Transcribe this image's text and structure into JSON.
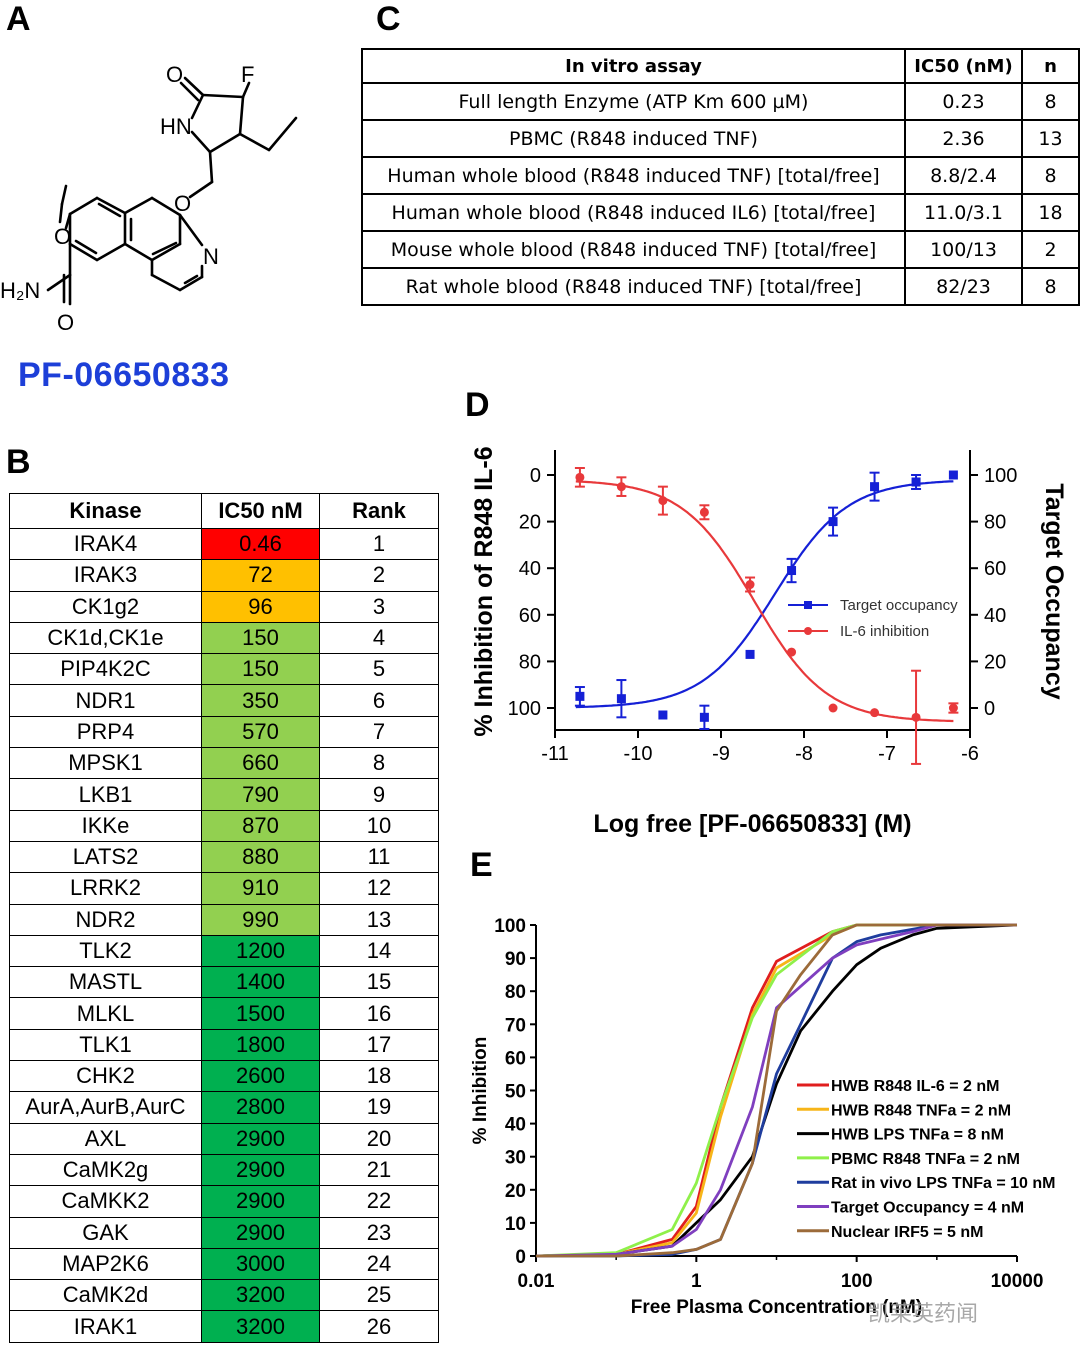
{
  "panels": {
    "a": "A",
    "b": "B",
    "c": "C",
    "d": "D",
    "e": "E"
  },
  "compound": {
    "name": "PF-06650833",
    "atom_labels": {
      "o1": "O",
      "f": "F",
      "hn": "HN",
      "o2": "O",
      "n": "N",
      "o3": "O",
      "h2n": "H₂N",
      "o4": "O"
    }
  },
  "assay_table": {
    "headers": [
      "In vitro assay",
      "IC50 (nM)",
      "n"
    ],
    "rows": [
      [
        "Full length Enzyme (ATP Km 600 µM)",
        "0.23",
        "8"
      ],
      [
        "PBMC (R848 induced TNF)",
        "2.36",
        "13"
      ],
      [
        "Human whole blood (R848 induced TNF) [total/free]",
        "8.8/2.4",
        "8"
      ],
      [
        "Human whole blood (R848 induced IL6) [total/free]",
        "11.0/3.1",
        "18"
      ],
      [
        "Mouse whole blood (R848 induced TNF) [total/free]",
        "100/13",
        "2"
      ],
      [
        "Rat whole blood (R848 induced TNF) [total/free]",
        "82/23",
        "8"
      ]
    ]
  },
  "kinase_table": {
    "headers": [
      "Kinase",
      "IC50 nM",
      "Rank"
    ],
    "rows": [
      [
        "IRAK4",
        "0.46",
        "1"
      ],
      [
        "IRAK3",
        "72",
        "2"
      ],
      [
        "CK1g2",
        "96",
        "3"
      ],
      [
        "CK1d,CK1e",
        "150",
        "4"
      ],
      [
        "PIP4K2C",
        "150",
        "5"
      ],
      [
        "NDR1",
        "350",
        "6"
      ],
      [
        "PRP4",
        "570",
        "7"
      ],
      [
        "MPSK1",
        "660",
        "8"
      ],
      [
        "LKB1",
        "790",
        "9"
      ],
      [
        "IKKe",
        "870",
        "10"
      ],
      [
        "LATS2",
        "880",
        "11"
      ],
      [
        "LRRK2",
        "910",
        "12"
      ],
      [
        "NDR2",
        "990",
        "13"
      ],
      [
        "TLK2",
        "1200",
        "14"
      ],
      [
        "MASTL",
        "1400",
        "15"
      ],
      [
        "MLKL",
        "1500",
        "16"
      ],
      [
        "TLK1",
        "1800",
        "17"
      ],
      [
        "CHK2",
        "2600",
        "18"
      ],
      [
        "AurA,AurB,AurC",
        "2800",
        "19"
      ],
      [
        "AXL",
        "2900",
        "20"
      ],
      [
        "CaMK2g",
        "2900",
        "21"
      ],
      [
        "CaMKK2",
        "2900",
        "22"
      ],
      [
        "GAK",
        "2900",
        "23"
      ],
      [
        "MAP2K6",
        "3000",
        "24"
      ],
      [
        "CaMK2d",
        "3200",
        "25"
      ],
      [
        "IRAK1",
        "3200",
        "26"
      ]
    ],
    "colors": {
      "red": "#ff0000",
      "orange": "#ffc000",
      "lightgreen": "#92d050",
      "green": "#00b050"
    }
  },
  "chart_data": [
    {
      "type": "scatter",
      "panel": "D",
      "xlabel": "Log free [PF-06650833] (M)",
      "ylabel": "% Inhibition of R848 IL-6",
      "y2label": "Target Occupancy",
      "xlim": [
        -11,
        -6
      ],
      "ylim": [
        100,
        0
      ],
      "y2lim": [
        0,
        100
      ],
      "xticks": [
        "-11",
        "-10",
        "-9",
        "-8",
        "-7",
        "-6"
      ],
      "yticks": [
        "0",
        "20",
        "40",
        "60",
        "80",
        "100"
      ],
      "y2ticks": [
        "100",
        "80",
        "60",
        "40",
        "20",
        "0"
      ],
      "legend_position": "center-right",
      "series": [
        {
          "name": "Target occupancy",
          "axis": "right",
          "color": "#1520d6",
          "marker": "square",
          "x": [
            -10.7,
            -10.2,
            -9.7,
            -9.2,
            -8.65,
            -8.15,
            -7.65,
            -7.15,
            -6.65,
            -6.2
          ],
          "y": [
            5,
            4,
            -3,
            -4,
            23,
            59,
            80,
            95,
            97,
            100
          ],
          "err": [
            4,
            8,
            0,
            5,
            0,
            5,
            6,
            6,
            3,
            0
          ],
          "fit": {
            "bottom": 0,
            "top": 98,
            "log_ec50": -8.35,
            "hill": 1
          }
        },
        {
          "name": "IL-6 inhibition",
          "axis": "left",
          "color": "#e8393b",
          "marker": "circle",
          "x": [
            -10.7,
            -10.2,
            -9.7,
            -9.2,
            -8.65,
            -8.15,
            -7.65,
            -7.15,
            -6.65,
            -6.2
          ],
          "y": [
            1,
            5,
            11,
            16,
            47,
            76,
            100,
            102,
            104,
            100
          ],
          "err": [
            4,
            4,
            6,
            3,
            3,
            0,
            0,
            0,
            20,
            2
          ],
          "fit": {
            "bottom": 2,
            "top": 106,
            "log_ec50": -8.6,
            "hill": 1
          }
        }
      ]
    },
    {
      "type": "line",
      "panel": "E",
      "xlabel": "Free Plasma Concentration (nM)",
      "ylabel": "% Inhibition",
      "xscale": "log",
      "xlim": [
        0.01,
        10000
      ],
      "ylim": [
        0,
        100
      ],
      "xticks": [
        "0.01",
        "1",
        "100",
        "10000"
      ],
      "yticks": [
        "0",
        "10",
        "20",
        "30",
        "40",
        "50",
        "60",
        "70",
        "80",
        "90",
        "100"
      ],
      "legend_position": "lower-right",
      "series": [
        {
          "name": "HWB R848 IL-6 = 2 nM",
          "color": "#e01e1e",
          "x": [
            0.01,
            0.1,
            0.5,
            1,
            2,
            5,
            10,
            50,
            100,
            1000,
            10000
          ],
          "y": [
            0,
            0.5,
            5,
            15,
            45,
            75,
            89,
            98,
            100,
            100,
            100
          ]
        },
        {
          "name": "HWB R848 TNFa = 2 nM",
          "color": "#f7b518",
          "x": [
            0.01,
            0.1,
            0.5,
            1,
            2,
            5,
            10,
            50,
            100,
            1000,
            10000
          ],
          "y": [
            0,
            0.5,
            4,
            13,
            42,
            73,
            87,
            97,
            100,
            100,
            100
          ]
        },
        {
          "name": "HWB LPS TNFa = 8 nM",
          "color": "#000000",
          "x": [
            0.01,
            0.1,
            0.5,
            1,
            2,
            5,
            10,
            20,
            50,
            100,
            200,
            500,
            1000,
            10000
          ],
          "y": [
            0,
            0.5,
            3,
            10,
            17,
            30,
            52,
            68,
            80,
            88,
            93,
            97,
            99,
            100
          ]
        },
        {
          "name": "PBMC R848 TNFa = 2 nM",
          "color": "#8ff04a",
          "x": [
            0.01,
            0.1,
            0.5,
            1,
            2,
            5,
            10,
            50,
            100,
            1000,
            10000
          ],
          "y": [
            0,
            1,
            8,
            22,
            45,
            72,
            85,
            98,
            100,
            100,
            100
          ]
        },
        {
          "name": "Rat in vivo LPS TNFa = 10 nM",
          "color": "#1f3d9e",
          "x": [
            0.01,
            0.1,
            0.5,
            1,
            2,
            5,
            10,
            20,
            50,
            100,
            200,
            1000,
            10000
          ],
          "y": [
            0,
            0,
            0.5,
            2,
            5,
            28,
            55,
            70,
            90,
            95,
            97,
            100,
            100
          ]
        },
        {
          "name": "Target Occupancy = 4 nM",
          "color": "#7f3fbf",
          "x": [
            0.01,
            0.1,
            0.5,
            1,
            2,
            5,
            10,
            50,
            100,
            500,
            1000,
            10000
          ],
          "y": [
            0,
            0.5,
            3,
            8,
            20,
            45,
            75,
            90,
            94,
            98,
            100,
            100
          ]
        },
        {
          "name": "Nuclear IRF5 = 5 nM",
          "color": "#9c6b3a",
          "x": [
            0.01,
            0.1,
            0.5,
            1,
            2,
            5,
            10,
            20,
            50,
            100,
            1000,
            10000
          ],
          "y": [
            0,
            0,
            1,
            2,
            5,
            28,
            74,
            85,
            97,
            100,
            100,
            100
          ]
        }
      ]
    }
  ],
  "watermark": "凯莱英药闻"
}
